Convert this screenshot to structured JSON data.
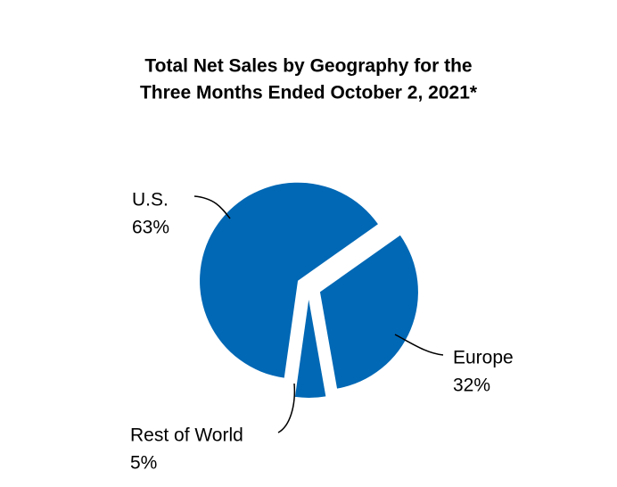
{
  "chart_data": {
    "type": "pie",
    "title": [
      "Total Net Sales by Geography for the",
      "Three Months Ended October 2, 2021*"
    ],
    "categories": [
      "U.S.",
      "Europe",
      "Rest of World"
    ],
    "values": [
      63,
      32,
      5
    ],
    "value_labels": [
      "63%",
      "32%",
      "5%"
    ],
    "color": "#0068b5"
  }
}
